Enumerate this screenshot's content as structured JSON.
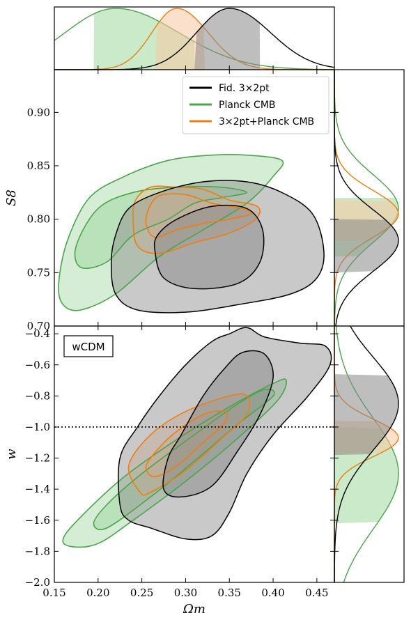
{
  "chart_data": {
    "type": "contour",
    "legend": {
      "placement": "top-right",
      "entries": [
        {
          "label": "Fid. 3×2pt",
          "color": "#000000"
        },
        {
          "label": "Planck CMB",
          "italic_word": "Planck",
          "color": "#4aa54a"
        },
        {
          "label": "3×2pt+Planck CMB",
          "italic_word": "Planck",
          "color": "#f07d10"
        }
      ]
    },
    "model_label": "wCDM",
    "xlabel": "Ωm",
    "x_ticks": [
      "0.15",
      "0.20",
      "0.25",
      "0.30",
      "0.35",
      "0.40",
      "0.45"
    ],
    "xlim": [
      0.15,
      0.47
    ],
    "top_panel": {
      "ylabel": "S8",
      "ylim": [
        0.7,
        0.94
      ],
      "y_ticks": [
        "0.70",
        "0.75",
        "0.80",
        "0.85",
        "0.90"
      ]
    },
    "bottom_panel": {
      "ylabel": "w",
      "ylim": [
        -2.0,
        -0.35
      ],
      "y_ticks": [
        "-0.4",
        "-0.6",
        "-0.8",
        "-1.0",
        "-1.2",
        "-1.4",
        "-1.6",
        "-1.8",
        "-2.0"
      ],
      "reference_line_w": -1.0
    },
    "series": [
      {
        "name": "Fid. 3×2pt",
        "color": "#000000",
        "fill": "#888888",
        "omega_m_marginal": {
          "peak": 0.35,
          "interval_68": [
            0.31,
            0.385
          ]
        },
        "s8_marginal": {
          "peak": 0.78,
          "interval_68": [
            0.75,
            0.8
          ]
        },
        "w_marginal": {
          "peak": -0.85,
          "interval_68": [
            -1.18,
            -0.66
          ]
        },
        "omega_s8": {
          "center": [
            0.34,
            0.775
          ],
          "c68": [
            [
              0.265,
              0.77
            ],
            [
              0.275,
              0.745
            ],
            [
              0.31,
              0.735
            ],
            [
              0.36,
              0.74
            ],
            [
              0.385,
              0.76
            ],
            [
              0.388,
              0.79
            ],
            [
              0.37,
              0.81
            ],
            [
              0.33,
              0.812
            ],
            [
              0.29,
              0.8
            ],
            [
              0.268,
              0.785
            ]
          ],
          "c95": [
            [
              0.215,
              0.76
            ],
            [
              0.22,
              0.73
            ],
            [
              0.245,
              0.715
            ],
            [
              0.3,
              0.713
            ],
            [
              0.36,
              0.72
            ],
            [
              0.42,
              0.73
            ],
            [
              0.45,
              0.745
            ],
            [
              0.458,
              0.77
            ],
            [
              0.445,
              0.805
            ],
            [
              0.41,
              0.825
            ],
            [
              0.37,
              0.835
            ],
            [
              0.32,
              0.835
            ],
            [
              0.27,
              0.825
            ],
            [
              0.235,
              0.81
            ],
            [
              0.22,
              0.785
            ]
          ]
        },
        "omega_w": {
          "c68": [
            [
              0.275,
              -1.4
            ],
            [
              0.28,
              -1.2
            ],
            [
              0.295,
              -1.05
            ],
            [
              0.32,
              -0.8
            ],
            [
              0.345,
              -0.62
            ],
            [
              0.365,
              -0.52
            ],
            [
              0.39,
              -0.53
            ],
            [
              0.4,
              -0.68
            ],
            [
              0.385,
              -0.92
            ],
            [
              0.36,
              -1.15
            ],
            [
              0.33,
              -1.38
            ],
            [
              0.295,
              -1.45
            ]
          ],
          "c95": [
            [
              0.225,
              -1.5
            ],
            [
              0.225,
              -1.2
            ],
            [
              0.245,
              -1.0
            ],
            [
              0.27,
              -0.8
            ],
            [
              0.3,
              -0.6
            ],
            [
              0.33,
              -0.45
            ],
            [
              0.35,
              -0.4
            ],
            [
              0.37,
              -0.36
            ],
            [
              0.39,
              -0.42
            ],
            [
              0.43,
              -0.46
            ],
            [
              0.46,
              -0.48
            ],
            [
              0.465,
              -0.6
            ],
            [
              0.44,
              -0.8
            ],
            [
              0.4,
              -1.05
            ],
            [
              0.37,
              -1.3
            ],
            [
              0.35,
              -1.55
            ],
            [
              0.33,
              -1.7
            ],
            [
              0.3,
              -1.72
            ],
            [
              0.26,
              -1.65
            ],
            [
              0.235,
              -1.6
            ]
          ]
        }
      },
      {
        "name": "Planck CMB",
        "color": "#4aa54a",
        "fill": "#9fd89f",
        "omega_m_marginal": {
          "peak": 0.22,
          "interval_68": [
            0.195,
            0.31
          ]
        },
        "s8_marginal": {
          "peak": 0.81,
          "interval_68": [
            0.765,
            0.82
          ]
        },
        "w_marginal": {
          "peak": -1.3,
          "interval_68": [
            -1.62,
            -1.0
          ]
        },
        "omega_s8": {
          "c68": [
            [
              0.175,
              0.775
            ],
            [
              0.18,
              0.755
            ],
            [
              0.21,
              0.76
            ],
            [
              0.24,
              0.785
            ],
            [
              0.28,
              0.8
            ],
            [
              0.31,
              0.815
            ],
            [
              0.34,
              0.82
            ],
            [
              0.37,
              0.825
            ],
            [
              0.34,
              0.83
            ],
            [
              0.29,
              0.83
            ],
            [
              0.24,
              0.825
            ],
            [
              0.2,
              0.81
            ]
          ],
          "c95": [
            [
              0.155,
              0.74
            ],
            [
              0.16,
              0.72
            ],
            [
              0.18,
              0.715
            ],
            [
              0.22,
              0.73
            ],
            [
              0.27,
              0.765
            ],
            [
              0.32,
              0.79
            ],
            [
              0.37,
              0.815
            ],
            [
              0.4,
              0.84
            ],
            [
              0.41,
              0.855
            ],
            [
              0.37,
              0.86
            ],
            [
              0.33,
              0.86
            ],
            [
              0.28,
              0.855
            ],
            [
              0.23,
              0.84
            ],
            [
              0.19,
              0.82
            ],
            [
              0.165,
              0.78
            ]
          ]
        },
        "omega_w": {
          "c68": [
            [
              0.195,
              -1.62
            ],
            [
              0.21,
              -1.5
            ],
            [
              0.25,
              -1.3
            ],
            [
              0.31,
              -1.05
            ],
            [
              0.36,
              -0.85
            ],
            [
              0.39,
              -0.76
            ],
            [
              0.4,
              -0.8
            ],
            [
              0.36,
              -0.98
            ],
            [
              0.31,
              -1.22
            ],
            [
              0.26,
              -1.45
            ],
            [
              0.21,
              -1.65
            ]
          ],
          "c95": [
            [
              0.16,
              -1.72
            ],
            [
              0.18,
              -1.58
            ],
            [
              0.23,
              -1.32
            ],
            [
              0.29,
              -1.08
            ],
            [
              0.35,
              -0.87
            ],
            [
              0.4,
              -0.72
            ],
            [
              0.415,
              -0.7
            ],
            [
              0.405,
              -0.83
            ],
            [
              0.36,
              -1.07
            ],
            [
              0.3,
              -1.35
            ],
            [
              0.24,
              -1.6
            ],
            [
              0.2,
              -1.75
            ],
            [
              0.17,
              -1.77
            ]
          ]
        }
      },
      {
        "name": "3×2pt+Planck CMB",
        "color": "#f07d10",
        "fill": "#f8c8a0",
        "omega_m_marginal": {
          "peak": 0.29,
          "interval_68": [
            0.265,
            0.322
          ]
        },
        "s8_marginal": {
          "peak": 0.805,
          "interval_68": [
            0.78,
            0.818
          ]
        },
        "w_marginal": {
          "peak": -1.07,
          "interval_68": [
            -1.17,
            -0.96
          ]
        },
        "omega_s8": {
          "c68": [
            [
              0.255,
              0.795
            ],
            [
              0.265,
              0.783
            ],
            [
              0.29,
              0.79
            ],
            [
              0.32,
              0.796
            ],
            [
              0.35,
              0.8
            ],
            [
              0.375,
              0.805
            ],
            [
              0.365,
              0.81
            ],
            [
              0.33,
              0.815
            ],
            [
              0.3,
              0.823
            ],
            [
              0.27,
              0.822
            ],
            [
              0.258,
              0.81
            ]
          ],
          "c95": [
            [
              0.24,
              0.8
            ],
            [
              0.245,
              0.775
            ],
            [
              0.27,
              0.768
            ],
            [
              0.31,
              0.778
            ],
            [
              0.35,
              0.787
            ],
            [
              0.38,
              0.8
            ],
            [
              0.382,
              0.812
            ],
            [
              0.35,
              0.818
            ],
            [
              0.32,
              0.828
            ],
            [
              0.29,
              0.83
            ],
            [
              0.26,
              0.83
            ],
            [
              0.243,
              0.818
            ]
          ]
        },
        "omega_w": {
          "c68": [
            [
              0.255,
              -1.27
            ],
            [
              0.26,
              -1.2
            ],
            [
              0.285,
              -1.05
            ],
            [
              0.32,
              -0.92
            ],
            [
              0.345,
              -0.9
            ],
            [
              0.345,
              -0.97
            ],
            [
              0.32,
              -1.1
            ],
            [
              0.29,
              -1.25
            ],
            [
              0.265,
              -1.32
            ]
          ],
          "c95": [
            [
              0.248,
              -1.42
            ],
            [
              0.235,
              -1.25
            ],
            [
              0.26,
              -1.05
            ],
            [
              0.3,
              -0.9
            ],
            [
              0.35,
              -0.8
            ],
            [
              0.37,
              -0.8
            ],
            [
              0.37,
              -0.92
            ],
            [
              0.34,
              -1.08
            ],
            [
              0.3,
              -1.28
            ],
            [
              0.26,
              -1.42
            ]
          ]
        }
      }
    ]
  }
}
